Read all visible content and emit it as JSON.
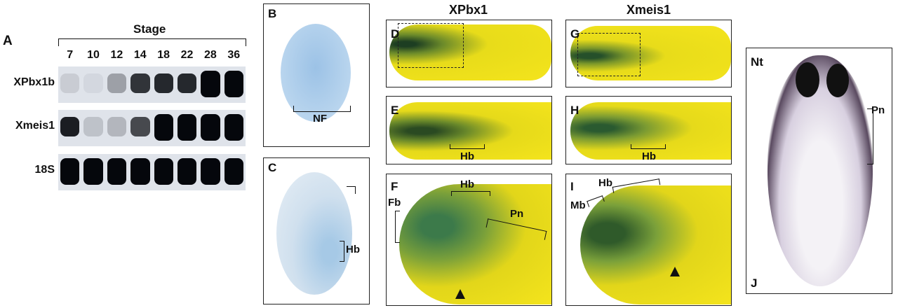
{
  "panel_a": {
    "letter": "A",
    "title": "Stage",
    "stages": [
      "7",
      "10",
      "12",
      "14",
      "18",
      "22",
      "28",
      "36"
    ],
    "blots": [
      {
        "label": "XPbx1b",
        "intensity": [
          0.1,
          0.05,
          0.3,
          0.8,
          0.85,
          0.85,
          1,
          1
        ]
      },
      {
        "label": "Xmeis1",
        "intensity": [
          0.9,
          0.15,
          0.2,
          0.7,
          1,
          1,
          1,
          1
        ]
      },
      {
        "label": "18S",
        "intensity": [
          1,
          1,
          1,
          1,
          1,
          1,
          1,
          1
        ]
      }
    ]
  },
  "columns": {
    "left": "XPbx1",
    "right": "Xmeis1"
  },
  "panels": {
    "B": {
      "letter": "B",
      "labels": [
        "NF"
      ]
    },
    "C": {
      "letter": "C",
      "labels": [
        "Hb"
      ]
    },
    "D": {
      "letter": "D"
    },
    "E": {
      "letter": "E",
      "labels": [
        "Hb"
      ]
    },
    "F": {
      "letter": "F",
      "labels": [
        "Fb",
        "Hb",
        "Pn"
      ]
    },
    "G": {
      "letter": "G"
    },
    "H": {
      "letter": "H",
      "labels": [
        "Hb"
      ]
    },
    "I": {
      "letter": "I",
      "labels": [
        "Mb",
        "Hb"
      ]
    },
    "J": {
      "letter": "J",
      "labels": [
        "Nt",
        "Pn"
      ]
    }
  },
  "colors": {
    "stain_yellow": "#f2e01a",
    "stain_green": "#2f6a2a",
    "blue_stain": "#a9cbe8",
    "purple_stain": "#2a2030"
  }
}
